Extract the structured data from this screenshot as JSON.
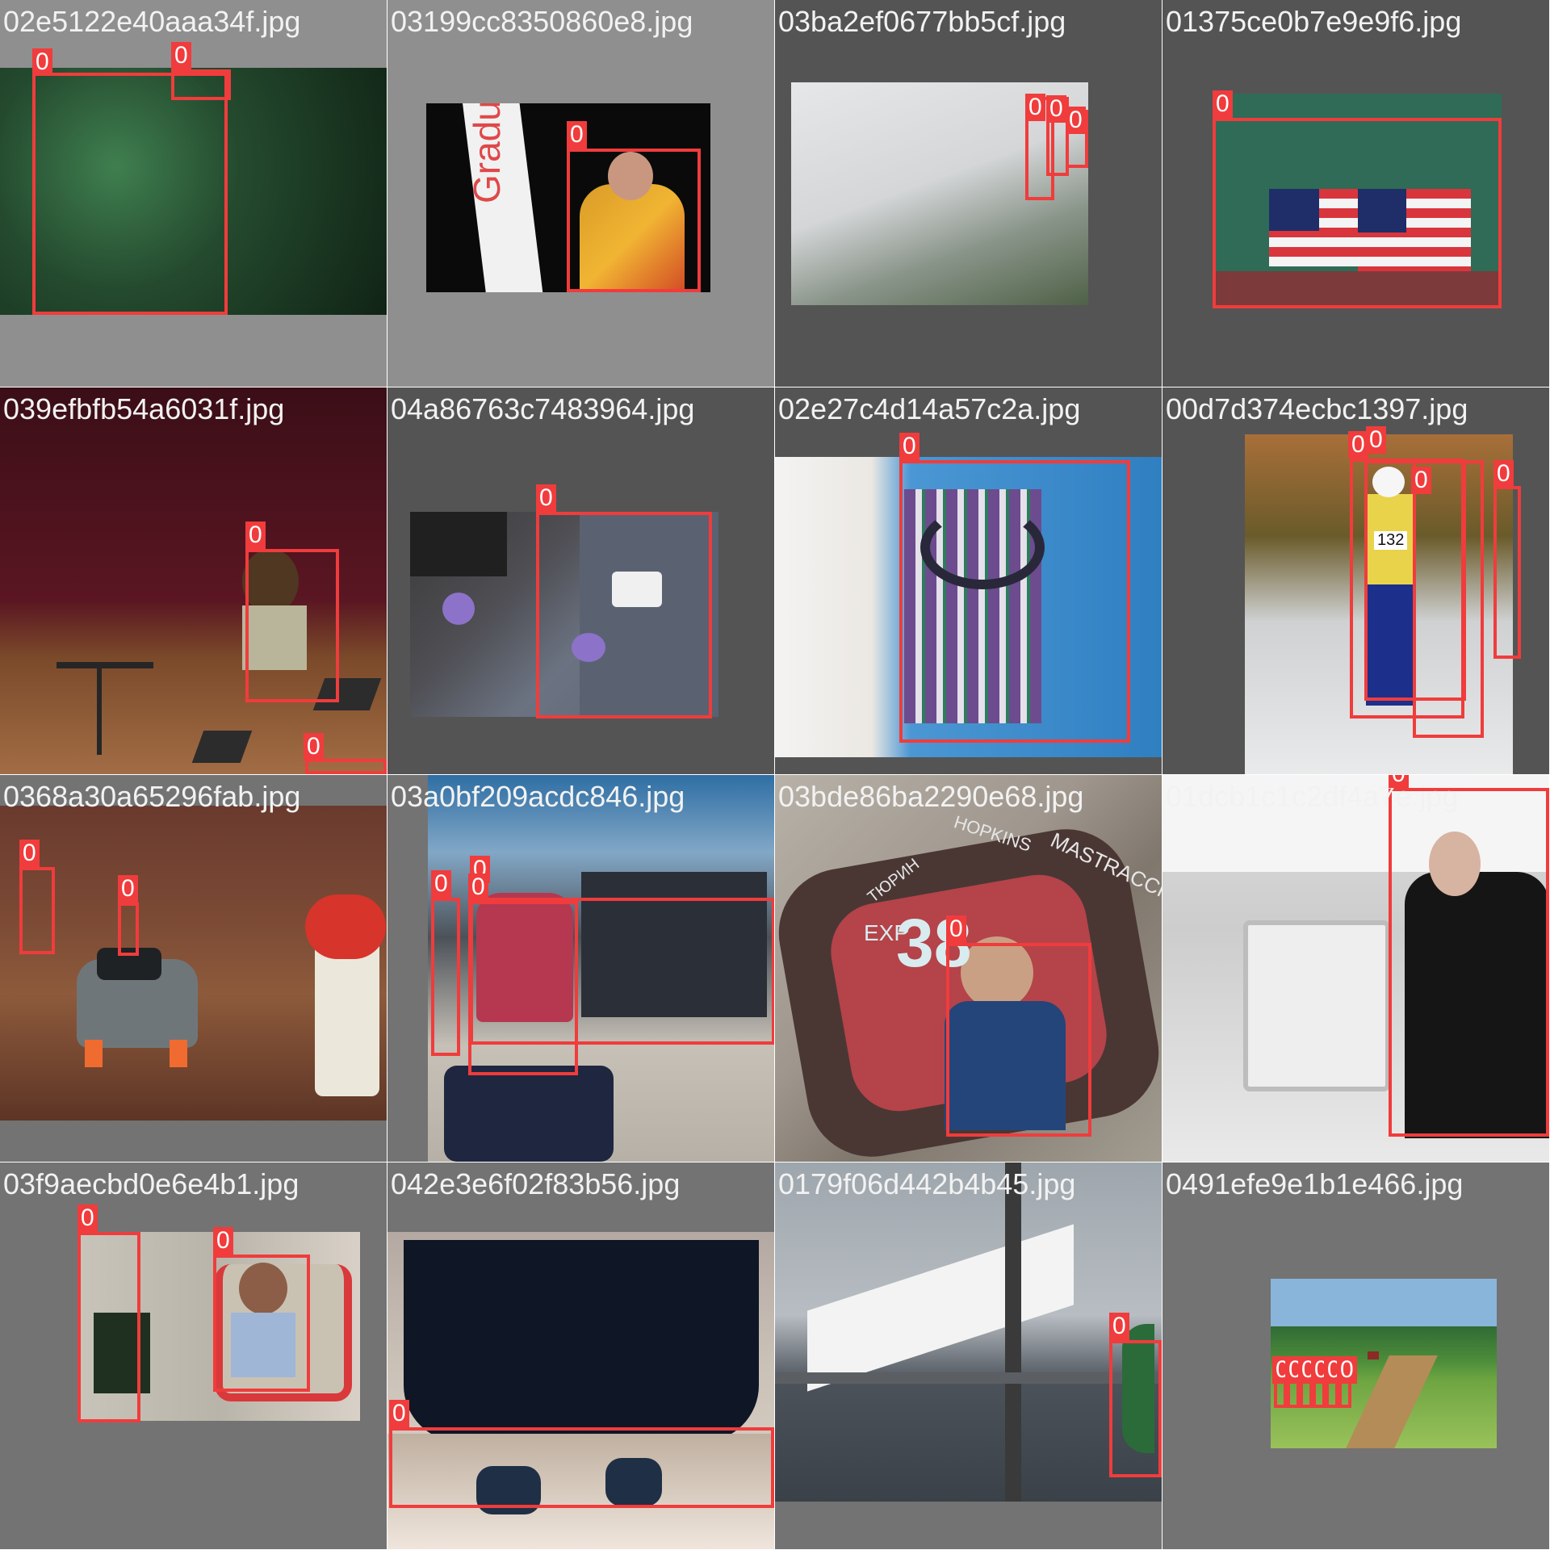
{
  "tiles": [
    {
      "filename": "02e5122e40aaa34f.jpg",
      "boxes": [
        {
          "label": "0"
        },
        {
          "label": "0"
        }
      ]
    },
    {
      "filename": "03199cc8350860e8.jpg",
      "boxes": [
        {
          "label": "0"
        }
      ],
      "photo_text": "Graduati"
    },
    {
      "filename": "03ba2ef0677bb5cf.jpg",
      "boxes": [
        {
          "label": "0"
        },
        {
          "label": "0"
        },
        {
          "label": "0"
        }
      ]
    },
    {
      "filename": "01375ce0b7e9e9f6.jpg",
      "boxes": [
        {
          "label": "0"
        }
      ]
    },
    {
      "filename": "039efbfb54a6031f.jpg",
      "boxes": [
        {
          "label": "0"
        },
        {
          "label": "0"
        }
      ]
    },
    {
      "filename": "04a86763c7483964.jpg",
      "boxes": [
        {
          "label": "0"
        }
      ]
    },
    {
      "filename": "02e27c4d14a57c2a.jpg",
      "boxes": [
        {
          "label": "0"
        }
      ]
    },
    {
      "filename": "00d7d374ecbc1397.jpg",
      "boxes": [
        {
          "label": "0"
        },
        {
          "label": "0"
        },
        {
          "label": "0"
        },
        {
          "label": "0"
        }
      ],
      "photo_text": "132"
    },
    {
      "filename": "0368a30a65296fab.jpg",
      "boxes": [
        {
          "label": "0"
        },
        {
          "label": "0"
        }
      ]
    },
    {
      "filename": "03a0bf209acdc846.jpg",
      "boxes": [
        {
          "label": "0"
        },
        {
          "label": "0"
        },
        {
          "label": "0"
        }
      ]
    },
    {
      "filename": "03bde86ba2290e68.jpg",
      "boxes": [
        {
          "label": "0"
        }
      ],
      "photo_text": [
        "HOPKINS",
        "MASTRACCHI",
        "TЮРИН",
        "EXP",
        "38"
      ]
    },
    {
      "filename": "01dcb1c1c2df4a7e.jpg",
      "boxes": [
        {
          "label": "0"
        }
      ]
    },
    {
      "filename": "03f9aecbd0e6e4b1.jpg",
      "boxes": [
        {
          "label": "0"
        },
        {
          "label": "0"
        }
      ]
    },
    {
      "filename": "042e3e6f02f83b56.jpg",
      "boxes": [
        {
          "label": "0"
        }
      ]
    },
    {
      "filename": "0179f06d442b4b45.jpg",
      "boxes": [
        {
          "label": "0"
        }
      ]
    },
    {
      "filename": "0491efe9e1b1e466.jpg",
      "boxes": [
        {
          "label": "0"
        },
        {
          "label": "0"
        },
        {
          "label": "0"
        },
        {
          "label": "0"
        },
        {
          "label": "0"
        },
        {
          "label": "0"
        }
      ]
    }
  ],
  "colors": {
    "box": "#f03c3c",
    "filename_text": "#f2f2f2"
  }
}
